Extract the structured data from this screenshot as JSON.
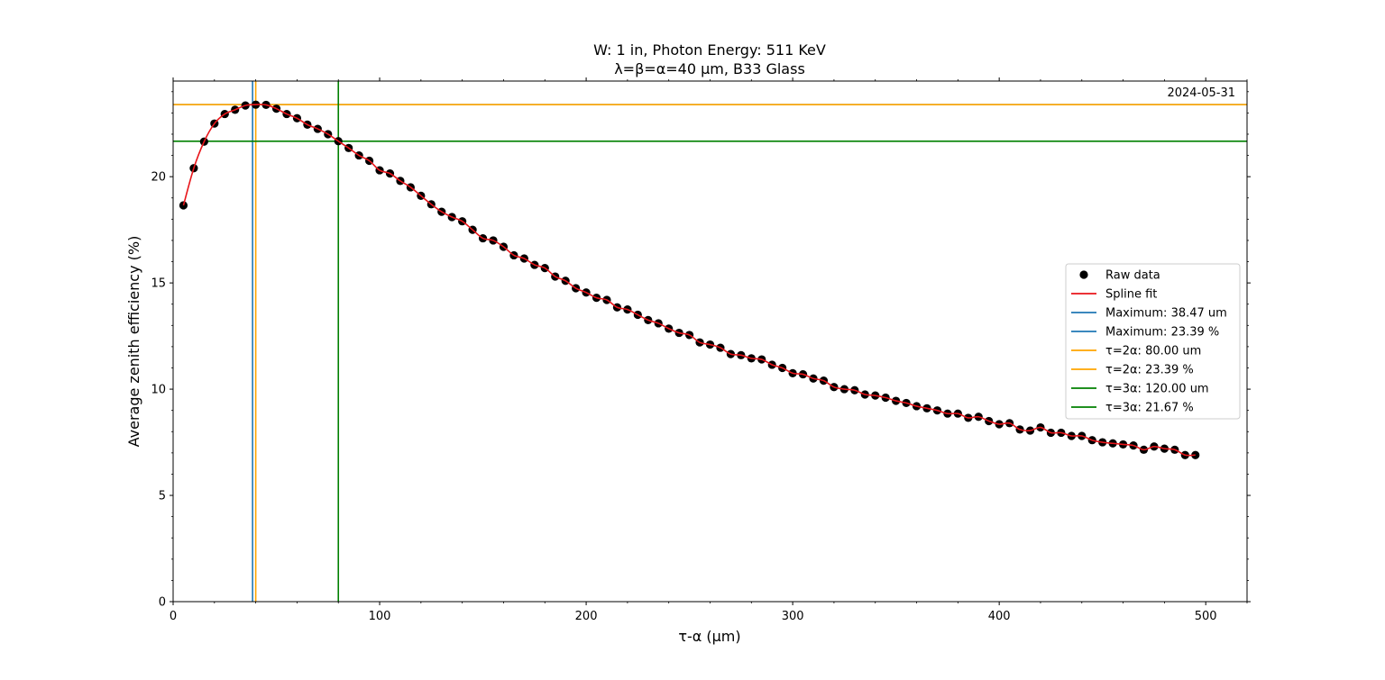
{
  "chart_data": {
    "type": "scatter",
    "title_line1": "W: 1 in, Photon Energy: 511 KeV",
    "title_line2": "λ=β=α=40 μm, B33 Glass",
    "xlabel": "τ-α (μm)",
    "ylabel": "Average zenith efficiency (%)",
    "date_annotation": "2024-05-31",
    "xlim": [
      0,
      520
    ],
    "ylim": [
      0,
      24.5
    ],
    "xticks": [
      0,
      100,
      200,
      300,
      400,
      500
    ],
    "yticks": [
      0,
      5,
      10,
      15,
      20
    ],
    "x_minor_step": 20,
    "y_minor_step": 1,
    "raw_data": {
      "name": "Raw data",
      "color": "#000000",
      "x": [
        5,
        10,
        15,
        20,
        25,
        30,
        35,
        40,
        45,
        50,
        55,
        60,
        65,
        70,
        75,
        80,
        85,
        90,
        95,
        100,
        105,
        110,
        115,
        120,
        125,
        130,
        135,
        140,
        145,
        150,
        155,
        160,
        165,
        170,
        175,
        180,
        185,
        190,
        195,
        200,
        205,
        210,
        215,
        220,
        225,
        230,
        235,
        240,
        245,
        250,
        255,
        260,
        265,
        270,
        275,
        280,
        285,
        290,
        295,
        300,
        305,
        310,
        315,
        320,
        325,
        330,
        335,
        340,
        345,
        350,
        355,
        360,
        365,
        370,
        375,
        380,
        385,
        390,
        395,
        400,
        405,
        410,
        415,
        420,
        425,
        430,
        435,
        440,
        445,
        450,
        455,
        460,
        465,
        470,
        475,
        480,
        485,
        490,
        495
      ],
      "y": [
        18.65,
        20.4,
        21.65,
        22.5,
        22.95,
        23.15,
        23.35,
        23.39,
        23.38,
        23.2,
        22.95,
        22.75,
        22.45,
        22.25,
        22.0,
        21.67,
        21.35,
        21.0,
        20.75,
        20.3,
        20.15,
        19.8,
        19.5,
        19.1,
        18.7,
        18.35,
        18.1,
        17.9,
        17.5,
        17.1,
        17.0,
        16.7,
        16.3,
        16.15,
        15.85,
        15.7,
        15.3,
        15.1,
        14.75,
        14.55,
        14.3,
        14.2,
        13.85,
        13.75,
        13.5,
        13.25,
        13.1,
        12.85,
        12.65,
        12.55,
        12.2,
        12.1,
        11.95,
        11.65,
        11.6,
        11.45,
        11.4,
        11.15,
        11.0,
        10.75,
        10.7,
        10.5,
        10.4,
        10.1,
        10.0,
        9.95,
        9.75,
        9.7,
        9.6,
        9.45,
        9.35,
        9.2,
        9.1,
        9.0,
        8.85,
        8.85,
        8.65,
        8.7,
        8.5,
        8.35,
        8.4,
        8.1,
        8.05,
        8.2,
        7.95,
        7.95,
        7.8,
        7.8,
        7.6,
        7.5,
        7.45,
        7.4,
        7.35,
        7.15,
        7.3,
        7.2,
        7.15,
        6.9,
        6.9
      ]
    },
    "spline_fit": {
      "name": "Spline fit",
      "color": "#e8151a"
    },
    "reference_lines": [
      {
        "orientation": "vertical",
        "value": 38.47,
        "color": "#1f77b4",
        "label": "Maximum: 38.47 um"
      },
      {
        "orientation": "horizontal",
        "value": 23.39,
        "color": "#1f77b4",
        "label": "Maximum: 23.39 %"
      },
      {
        "orientation": "vertical",
        "value": 40.0,
        "color": "#ffa500",
        "label": "τ=2α: 80.00 um"
      },
      {
        "orientation": "horizontal",
        "value": 23.39,
        "color": "#ffa500",
        "label": "τ=2α: 23.39 %"
      },
      {
        "orientation": "vertical",
        "value": 80.0,
        "color": "#008000",
        "label": "τ=3α: 120.00 um"
      },
      {
        "orientation": "horizontal",
        "value": 21.67,
        "color": "#008000",
        "label": "τ=3α: 21.67 %"
      }
    ],
    "legend_position": "center-right",
    "grid": false
  }
}
